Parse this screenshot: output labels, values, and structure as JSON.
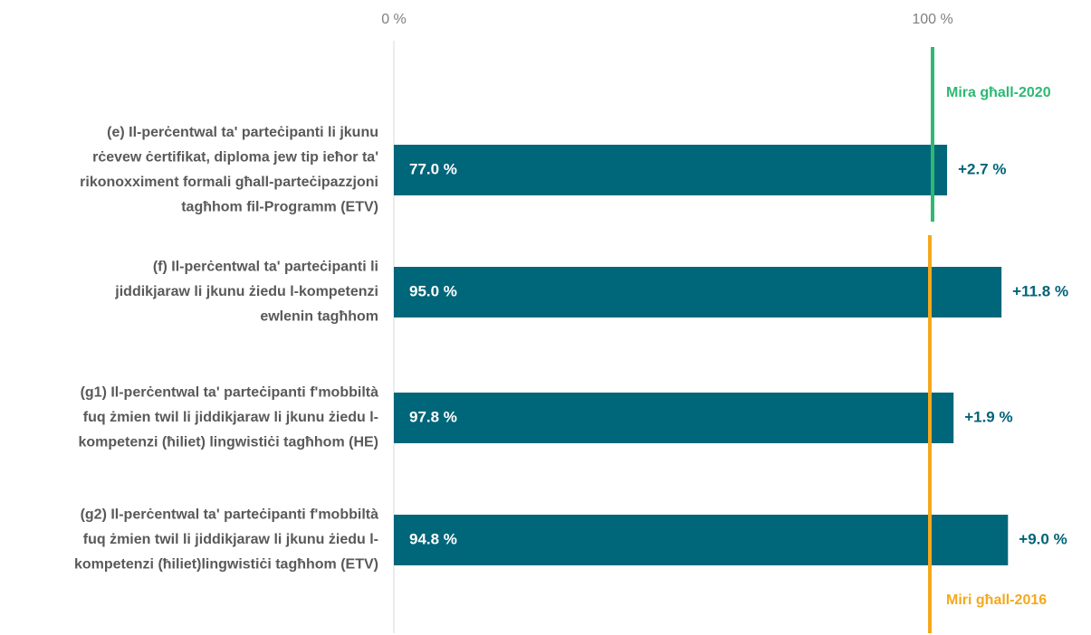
{
  "chart_data": {
    "type": "bar",
    "orientation": "horizontal",
    "categories": [
      [
        "(e) Il-perċentwal ta' parteċipanti li jkunu",
        "rċevew ċertifikat, diploma jew tip ieħor ta'",
        "rikonoxximent formali għall-parteċipazzjoni",
        "tagħhom fil-Programm (ETV)"
      ],
      [
        "(f) Il-perċentwal ta' parteċipanti li",
        "jiddikjaraw li jkunu żiedu l-kompetenzi",
        "ewlenin tagħhom"
      ],
      [
        "(g1) Il-perċentwal ta' parteċipanti f'mobbiltà",
        "fuq żmien twil li jiddikjaraw li jkunu żiedu l-",
        "kompetenzi (ħiliet) lingwistiċi tagħhom (HE)"
      ],
      [
        "(g2) Il-perċentwal ta' parteċipanti f'mobbiltà",
        "fuq żmien twil li jiddikjaraw li jkunu żiedu l-",
        "kompetenzi (ħiliet)lingwistiċi tagħhom (ETV)"
      ]
    ],
    "values": [
      102.7,
      112.8,
      103.9,
      114.0
    ],
    "bar_texts": [
      "77.0 %",
      "95.0 %",
      "97.8 %",
      "94.8 %"
    ],
    "change_texts": [
      "+2.7 %",
      "+11.8 %",
      "+1.9 %",
      "+9.0 %"
    ],
    "color": "#00667a",
    "change_color": "#006478",
    "xlim": [
      0,
      130
    ],
    "xticks": [
      {
        "value": 0,
        "label": "0 %"
      },
      {
        "value": 100,
        "label": "100 %"
      }
    ],
    "reference_lines": [
      {
        "name": "Mira għall-2020",
        "value": 100,
        "color": "#2eb872"
      },
      {
        "name": "Miri għall-2016",
        "value": 100,
        "color": "#f5a81c"
      }
    ]
  }
}
